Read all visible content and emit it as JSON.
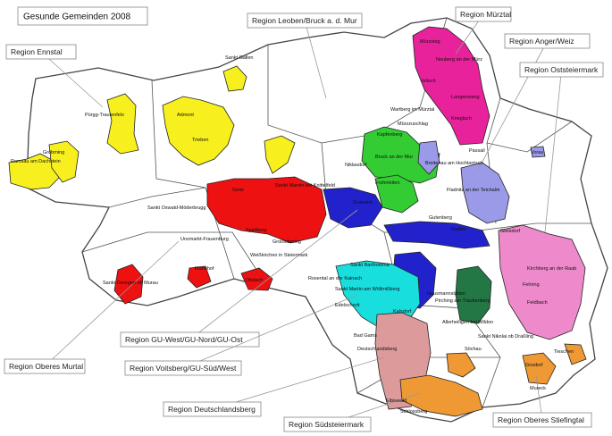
{
  "title": "Gesunde Gemeinden 2008",
  "regions": [
    {
      "label": "Region Ennstal",
      "color": "#f7f01e"
    },
    {
      "label": "Region Leoben/Bruck a. d. Mur",
      "color": "#33cc33"
    },
    {
      "label": "Region Mürztal",
      "color": "#e8229a"
    },
    {
      "label": "Region Anger/Weiz",
      "color": "#9a9ae8"
    },
    {
      "label": "Region Oststeiermark",
      "color": "#ee8acb"
    },
    {
      "label": "Region GU-West/GU-Nord/GU-Ost",
      "color": "#2222cc"
    },
    {
      "label": "Region Oberes Murtal",
      "color": "#ee1111"
    },
    {
      "label": "Region Voitsberg/GU-Süd/West",
      "color": "#18dede"
    },
    {
      "label": "Region Deutschlandsberg",
      "color": "#dd9a9a"
    },
    {
      "label": "Region Südsteiermark",
      "color": "#ee9933"
    },
    {
      "label": "Region Oberes Stiefingtal",
      "color": "#227744"
    }
  ],
  "places": [
    "Sankt Gallen",
    "Admont",
    "Trieben",
    "Pürgg-Trautenfels",
    "Gröbming",
    "Ramsau am Dachstein",
    "Mürzsteg",
    "Neuberg an der Mürz",
    "Veitsch",
    "Langenwang",
    "Krieglach",
    "Wartberg im Mürztal",
    "Mürzzuschlag",
    "Kapfenberg",
    "Bruck an der Mur",
    "Breitenau am Hochlantsch",
    "Niklasdorf",
    "Frohnleiten",
    "Gratwein",
    "Geist",
    "Sankt Marein bei Knittelfeld",
    "Spielberg",
    "Großlobming",
    "Weißkirchen in Steiermark",
    "Sankt Oswald-Möderbrugg",
    "Unzmarkt-Frauenburg",
    "Mariahof",
    "Obdach",
    "Sankt Georgen ob Murau",
    "Passail",
    "Fladnitz an der Teichalm",
    "Gutenberg",
    "Sankt Bartholomä",
    "Rosental an der Kainach",
    "Sankt Martin am Wöllmißberg",
    "Edelschrott",
    "Bad Gams",
    "Deutschlandsberg",
    "Eibiswald",
    "Schlossberg",
    "Fehring",
    "Feldbach",
    "Kirchberg an der Raab",
    "Gleisdorf",
    "Vorau",
    "Gosdorf",
    "Mureck",
    "Tieschen",
    "Söchau",
    "Sankt Nikolai ob Draßling",
    "Allerheiligen bei Wildon",
    "Raaba",
    "Kalsdorf",
    "Hausmannstätten",
    "Pirching am Traubenberg"
  ]
}
